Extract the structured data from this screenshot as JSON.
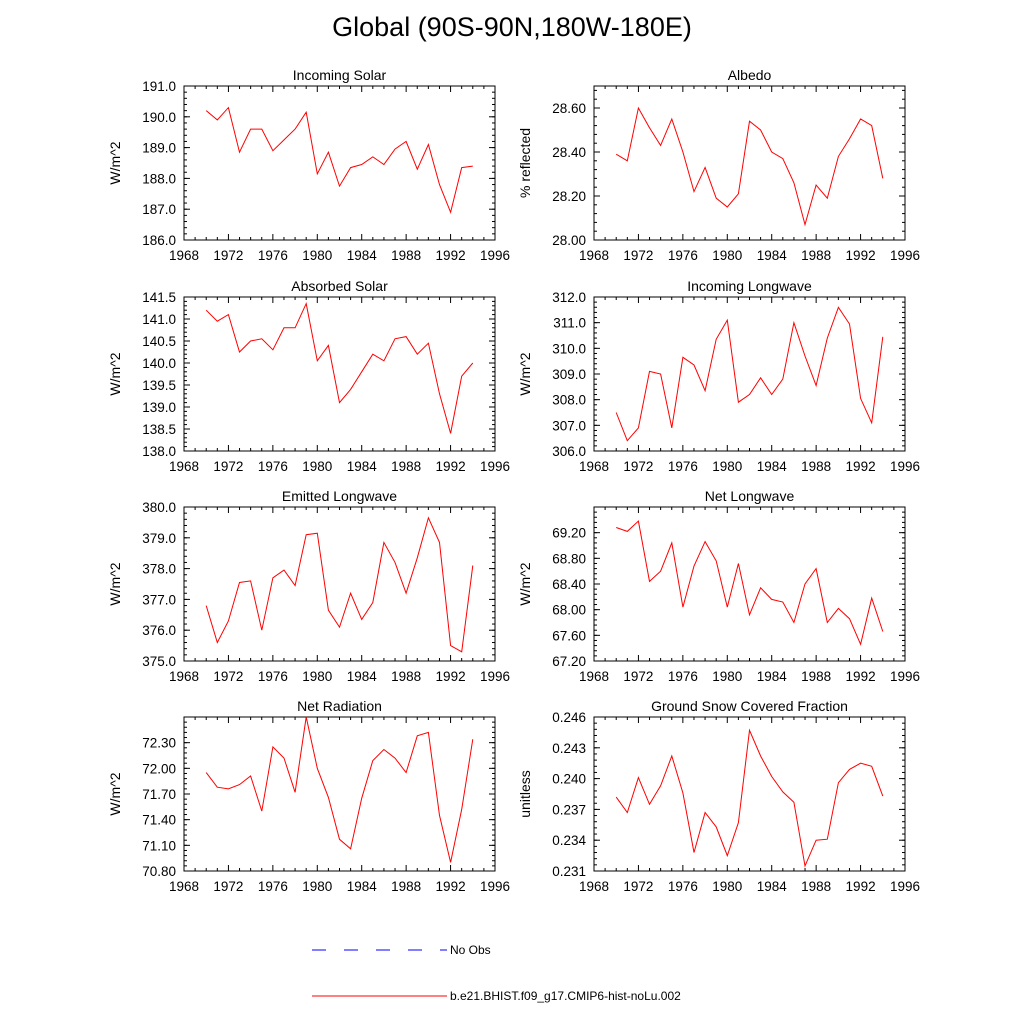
{
  "figure": {
    "title": "Global (90S-90N,180W-180E)",
    "colors": {
      "model": "#ff0000",
      "obs": "#0000ff",
      "axis": "#000000"
    }
  },
  "legend": {
    "obs_label": "No Obs",
    "model_label": "b.e21.BHIST.f09_g17.CMIP6-hist-noLu.002"
  },
  "chart_data": [
    {
      "type": "line",
      "title": "Incoming Solar",
      "ylabel": "W/m^2",
      "xlim": [
        1968,
        1996
      ],
      "ylim": [
        186.0,
        191.0
      ],
      "xticks": [
        "1968",
        "1972",
        "1976",
        "1980",
        "1984",
        "1988",
        "1992",
        "1996"
      ],
      "yticks": [
        "186.0",
        "187.0",
        "188.0",
        "189.0",
        "190.0",
        "191.0"
      ],
      "grid": false,
      "series": [
        {
          "color": "#ff0000",
          "x": [
            1970,
            1971,
            1972,
            1973,
            1974,
            1975,
            1976,
            1977,
            1978,
            1979,
            1980,
            1981,
            1982,
            1983,
            1984,
            1985,
            1986,
            1987,
            1988,
            1989,
            1990,
            1991,
            1992,
            1993,
            1994
          ],
          "y": [
            190.2,
            189.9,
            190.3,
            188.85,
            189.6,
            189.6,
            188.9,
            189.25,
            189.6,
            190.15,
            188.15,
            188.85,
            187.75,
            188.35,
            188.45,
            188.7,
            188.45,
            188.95,
            189.2,
            188.3,
            189.1,
            187.8,
            186.9,
            188.35,
            188.4
          ]
        }
      ]
    },
    {
      "type": "line",
      "title": "Albedo",
      "ylabel": "% reflected",
      "xlim": [
        1968,
        1996
      ],
      "ylim": [
        28.0,
        28.7
      ],
      "xticks": [
        "1968",
        "1972",
        "1976",
        "1980",
        "1984",
        "1988",
        "1992",
        "1996"
      ],
      "yticks": [
        "28.00",
        "28.20",
        "28.40",
        "28.60"
      ],
      "grid": false,
      "series": [
        {
          "color": "#ff0000",
          "x": [
            1970,
            1971,
            1972,
            1973,
            1974,
            1975,
            1976,
            1977,
            1978,
            1979,
            1980,
            1981,
            1982,
            1983,
            1984,
            1985,
            1986,
            1987,
            1988,
            1989,
            1990,
            1991,
            1992,
            1993,
            1994
          ],
          "y": [
            28.39,
            28.36,
            28.6,
            28.51,
            28.43,
            28.55,
            28.4,
            28.22,
            28.33,
            28.19,
            28.15,
            28.21,
            28.54,
            28.5,
            28.4,
            28.37,
            28.26,
            28.07,
            28.25,
            28.19,
            28.38,
            28.46,
            28.55,
            28.52,
            28.28
          ]
        }
      ]
    },
    {
      "type": "line",
      "title": "Absorbed Solar",
      "ylabel": "W/m^2",
      "xlim": [
        1968,
        1996
      ],
      "ylim": [
        138.0,
        141.5
      ],
      "xticks": [
        "1968",
        "1972",
        "1976",
        "1980",
        "1984",
        "1988",
        "1992",
        "1996"
      ],
      "yticks": [
        "138.0",
        "138.5",
        "139.0",
        "139.5",
        "140.0",
        "140.5",
        "141.0",
        "141.5"
      ],
      "grid": false,
      "series": [
        {
          "color": "#ff0000",
          "x": [
            1970,
            1971,
            1972,
            1973,
            1974,
            1975,
            1976,
            1977,
            1978,
            1979,
            1980,
            1981,
            1982,
            1983,
            1984,
            1985,
            1986,
            1987,
            1988,
            1989,
            1990,
            1991,
            1992,
            1993,
            1994
          ],
          "y": [
            141.2,
            140.95,
            141.1,
            140.25,
            140.5,
            140.55,
            140.3,
            140.8,
            140.8,
            141.35,
            140.05,
            140.4,
            139.1,
            139.4,
            139.8,
            140.2,
            140.05,
            140.55,
            140.6,
            140.2,
            140.45,
            139.3,
            138.4,
            139.7,
            140.0
          ]
        }
      ]
    },
    {
      "type": "line",
      "title": "Incoming Longwave",
      "ylabel": "W/m^2",
      "xlim": [
        1968,
        1996
      ],
      "ylim": [
        306.0,
        312.0
      ],
      "xticks": [
        "1968",
        "1972",
        "1976",
        "1980",
        "1984",
        "1988",
        "1992",
        "1996"
      ],
      "yticks": [
        "306.0",
        "307.0",
        "308.0",
        "309.0",
        "310.0",
        "311.0",
        "312.0"
      ],
      "grid": false,
      "series": [
        {
          "color": "#ff0000",
          "x": [
            1970,
            1971,
            1972,
            1973,
            1974,
            1975,
            1976,
            1977,
            1978,
            1979,
            1980,
            1981,
            1982,
            1983,
            1984,
            1985,
            1986,
            1987,
            1988,
            1989,
            1990,
            1991,
            1992,
            1993,
            1994
          ],
          "y": [
            307.5,
            306.4,
            306.9,
            309.1,
            309.0,
            306.9,
            309.65,
            309.35,
            308.35,
            310.35,
            311.1,
            307.9,
            308.2,
            308.85,
            308.2,
            308.8,
            311.0,
            309.7,
            308.55,
            310.4,
            311.6,
            310.95,
            308.05,
            307.1,
            310.45
          ]
        }
      ]
    },
    {
      "type": "line",
      "title": "Emitted Longwave",
      "ylabel": "W/m^2",
      "xlim": [
        1968,
        1996
      ],
      "ylim": [
        375.0,
        380.0
      ],
      "xticks": [
        "1968",
        "1972",
        "1976",
        "1980",
        "1984",
        "1988",
        "1992",
        "1996"
      ],
      "yticks": [
        "375.0",
        "376.0",
        "377.0",
        "378.0",
        "379.0",
        "380.0"
      ],
      "grid": false,
      "series": [
        {
          "color": "#ff0000",
          "x": [
            1970,
            1971,
            1972,
            1973,
            1974,
            1975,
            1976,
            1977,
            1978,
            1979,
            1980,
            1981,
            1982,
            1983,
            1984,
            1985,
            1986,
            1987,
            1988,
            1989,
            1990,
            1991,
            1992,
            1993,
            1994
          ],
          "y": [
            376.8,
            375.6,
            376.3,
            377.55,
            377.6,
            376.0,
            377.7,
            377.95,
            377.45,
            379.1,
            379.15,
            376.65,
            376.1,
            377.2,
            376.35,
            376.9,
            378.85,
            378.2,
            377.2,
            378.35,
            379.65,
            378.85,
            375.5,
            375.3,
            378.1
          ]
        }
      ]
    },
    {
      "type": "line",
      "title": "Net Longwave",
      "ylabel": "W/m^2",
      "xlim": [
        1968,
        1996
      ],
      "ylim": [
        67.2,
        69.6
      ],
      "xticks": [
        "1968",
        "1972",
        "1976",
        "1980",
        "1984",
        "1988",
        "1992",
        "1996"
      ],
      "yticks": [
        "67.20",
        "67.60",
        "68.00",
        "68.40",
        "68.80",
        "69.20"
      ],
      "grid": false,
      "series": [
        {
          "color": "#ff0000",
          "x": [
            1970,
            1971,
            1972,
            1973,
            1974,
            1975,
            1976,
            1977,
            1978,
            1979,
            1980,
            1981,
            1982,
            1983,
            1984,
            1985,
            1986,
            1987,
            1988,
            1989,
            1990,
            1991,
            1992,
            1993,
            1994
          ],
          "y": [
            69.28,
            69.22,
            69.38,
            68.44,
            68.6,
            69.04,
            68.04,
            68.68,
            69.06,
            68.76,
            68.04,
            68.72,
            67.92,
            68.34,
            68.16,
            68.12,
            67.8,
            68.4,
            68.64,
            67.8,
            68.02,
            67.86,
            67.46,
            68.18,
            67.66
          ]
        }
      ]
    },
    {
      "type": "line",
      "title": "Net Radiation",
      "ylabel": "W/m^2",
      "xlim": [
        1968,
        1996
      ],
      "ylim": [
        70.8,
        72.6
      ],
      "xticks": [
        "1968",
        "1972",
        "1976",
        "1980",
        "1984",
        "1988",
        "1992",
        "1996"
      ],
      "yticks": [
        "70.80",
        "71.10",
        "71.40",
        "71.70",
        "72.00",
        "72.30"
      ],
      "grid": false,
      "series": [
        {
          "color": "#ff0000",
          "x": [
            1970,
            1971,
            1972,
            1973,
            1974,
            1975,
            1976,
            1977,
            1978,
            1979,
            1980,
            1981,
            1982,
            1983,
            1984,
            1985,
            1986,
            1987,
            1988,
            1989,
            1990,
            1991,
            1992,
            1993,
            1994
          ],
          "y": [
            71.95,
            71.78,
            71.76,
            71.81,
            71.91,
            71.5,
            72.25,
            72.12,
            71.72,
            72.6,
            72.0,
            71.66,
            71.17,
            71.06,
            71.65,
            72.09,
            72.22,
            72.12,
            71.95,
            72.38,
            72.42,
            71.45,
            70.9,
            71.52,
            72.34
          ]
        }
      ]
    },
    {
      "type": "line",
      "title": "Ground Snow Covered Fraction",
      "ylabel": "unitless",
      "xlim": [
        1968,
        1996
      ],
      "ylim": [
        0.231,
        0.246
      ],
      "xticks": [
        "1968",
        "1972",
        "1976",
        "1980",
        "1984",
        "1988",
        "1992",
        "1996"
      ],
      "yticks": [
        "0.231",
        "0.234",
        "0.237",
        "0.240",
        "0.243",
        "0.246"
      ],
      "grid": false,
      "series": [
        {
          "color": "#ff0000",
          "x": [
            1970,
            1971,
            1972,
            1973,
            1974,
            1975,
            1976,
            1977,
            1978,
            1979,
            1980,
            1981,
            1982,
            1983,
            1984,
            1985,
            1986,
            1987,
            1988,
            1989,
            1990,
            1991,
            1992,
            1993,
            1994
          ],
          "y": [
            0.2382,
            0.2367,
            0.2401,
            0.2375,
            0.2393,
            0.2422,
            0.2386,
            0.2328,
            0.2367,
            0.2353,
            0.2325,
            0.2357,
            0.2447,
            0.2422,
            0.2402,
            0.2387,
            0.2377,
            0.2315,
            0.234,
            0.2341,
            0.2396,
            0.2409,
            0.2415,
            0.2412,
            0.2383
          ]
        }
      ]
    }
  ]
}
